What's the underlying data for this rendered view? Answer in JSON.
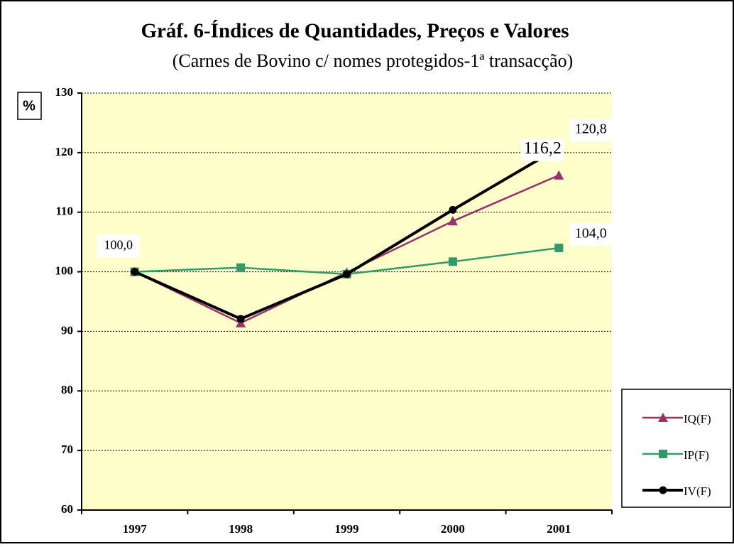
{
  "chart_data": {
    "type": "line",
    "title": "Gráf. 6-Índices de Quantidades, Preços e Valores",
    "subtitle": "(Carnes de Bovino c/ nomes protegidos-1ª transacção)",
    "y_label": "%",
    "categories": [
      "1997",
      "1998",
      "1999",
      "2000",
      "2001"
    ],
    "series": [
      {
        "name": "IQ(F)",
        "color": "#993366",
        "marker": "triangle",
        "values": [
          100,
          91.4,
          99.9,
          108.5,
          116.2
        ],
        "value_labels": [
          "100,0",
          null,
          null,
          null,
          "116,2"
        ]
      },
      {
        "name": "IP(F)",
        "color": "#339966",
        "marker": "square",
        "values": [
          100,
          100.7,
          99.6,
          101.7,
          104.0
        ],
        "value_labels": [
          null,
          null,
          null,
          null,
          "104,0"
        ]
      },
      {
        "name": "IV(F)",
        "color": "#000000",
        "marker": "circle",
        "values": [
          100,
          92.1,
          99.6,
          110.4,
          120.8
        ],
        "value_labels": [
          null,
          null,
          null,
          null,
          "120,8"
        ]
      }
    ],
    "ylim": [
      60,
      130
    ],
    "yticks": [
      60,
      70,
      80,
      90,
      100,
      110,
      120,
      130
    ],
    "grid": true,
    "legend": "lower right",
    "plot_background": "#ffffcc"
  }
}
